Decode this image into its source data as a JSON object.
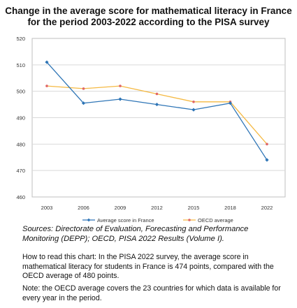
{
  "title": "Change in the average score for mathematical literacy in France for the period 2003-2022 according to the PISA survey",
  "sources": "Sources: Directorate of Evaluation, Forecasting and Performance Monitoring (DEPP); OECD, PISA 2022 Results (Volume I).",
  "how_to_read": "How to read this chart: In the PISA 2022 survey, the average score in mathematical literacy for students in France is 474 points, compared with the OECD average of 480 points.",
  "note": "Note: the OECD average covers the 23 countries for which data is available for every year in the period.",
  "colors": {
    "france": "#2e75b6",
    "oecd": "#f4b183",
    "oecd_marker": "#e06666",
    "oecd_line": "#f5b942"
  },
  "chart_data": {
    "type": "line",
    "title": "Change in the average score for mathematical literacy in France for the period 2003-2022 according to the PISA survey",
    "xlabel": "",
    "ylabel": "",
    "categories": [
      "2003",
      "2006",
      "2009",
      "2012",
      "2015",
      "2018",
      "2022"
    ],
    "ylim": [
      460,
      520
    ],
    "yticks": [
      "460",
      "470",
      "480",
      "490",
      "500",
      "510",
      "520"
    ],
    "grid": true,
    "legend": "bottom",
    "series": [
      {
        "name": "Average score in France",
        "values": [
          511,
          495.5,
          497,
          495,
          493,
          495.5,
          474
        ]
      },
      {
        "name": "OECD average",
        "values": [
          502,
          501,
          502,
          499,
          496,
          496,
          480
        ]
      }
    ]
  }
}
